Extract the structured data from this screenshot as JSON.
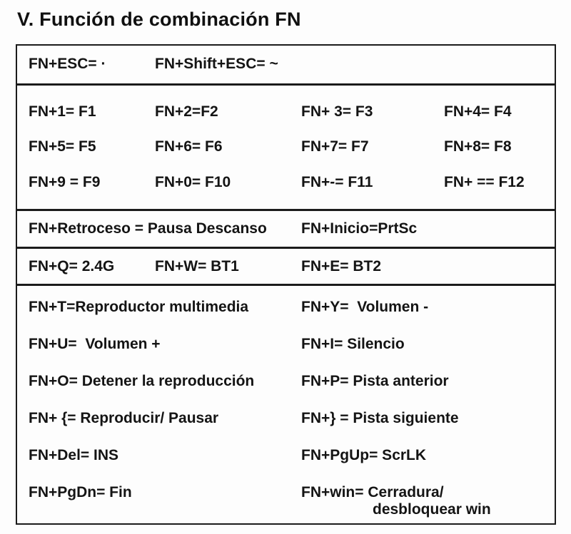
{
  "title": "V. Función de combinación FN",
  "table": {
    "esc_row": {
      "cells": [
        "FN+ESC= ·",
        "FN+Shift+ESC= ~"
      ]
    },
    "fkeys_row": {
      "lines": [
        [
          "FN+1= F1",
          "FN+2=F2",
          "FN+ 3= F3",
          "FN+4= F4"
        ],
        [
          "FN+5= F5",
          "FN+6= F6",
          "FN+7= F7",
          "FN+8= F8"
        ],
        [
          "FN+9 = F9",
          "FN+0= F10",
          "FN+-= F11",
          "FN+ == F12"
        ]
      ]
    },
    "pause_row": {
      "cells": [
        "FN+Retroceso = Pausa Descanso",
        "FN+Inicio=PrtSc"
      ]
    },
    "wireless_row": {
      "cells": [
        "FN+Q= 2.4G",
        "FN+W= BT1",
        "FN+E= BT2"
      ]
    },
    "media_row": {
      "left": [
        "FN+T=Reproductor multimedia",
        "FN+U=  Volumen +",
        "FN+O= Detener la reproducción",
        "FN+ {= Reproducir/ Pausar",
        "FN+Del= INS",
        "FN+PgDn= Fin"
      ],
      "right": [
        "FN+Y=  Volumen -",
        "FN+I= Silencio",
        "FN+P= Pista anterior",
        "FN+} = Pista siguiente",
        "FN+PgUp= ScrLK"
      ],
      "win_combo": {
        "line1": "FN+win= Cerradura/",
        "line2": "desbloquear win"
      }
    }
  }
}
